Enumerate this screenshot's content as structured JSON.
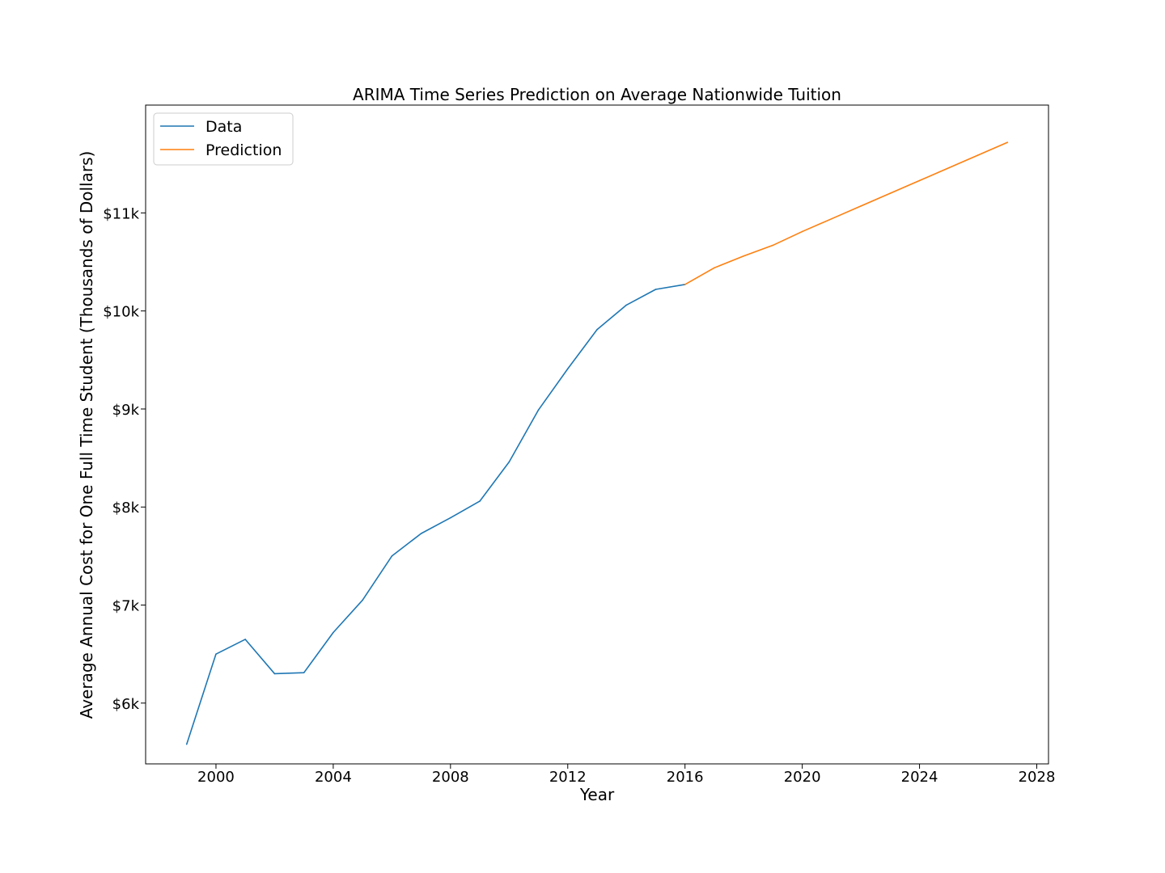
{
  "chart_data": {
    "type": "line",
    "title": "ARIMA Time Series Prediction on Average Nationwide Tuition",
    "xlabel": "Year",
    "ylabel": "Average Annual Cost for One Full Time Student (Thousands of Dollars)",
    "xlim": [
      1997.6,
      2028.4
    ],
    "ylim": [
      5.38,
      12.1
    ],
    "x_ticks": [
      2000,
      2004,
      2008,
      2012,
      2016,
      2020,
      2024,
      2028
    ],
    "x_tick_labels": [
      "2000",
      "2004",
      "2008",
      "2012",
      "2016",
      "2020",
      "2024",
      "2028"
    ],
    "y_ticks": [
      6,
      7,
      8,
      9,
      10,
      11
    ],
    "y_tick_labels": [
      "$6k",
      "$7k",
      "$8k",
      "$9k",
      "$10k",
      "$11k"
    ],
    "grid": false,
    "legend_position": "top-left",
    "series": [
      {
        "name": "Data",
        "color": "#1f77b4",
        "x": [
          1999,
          2000,
          2001,
          2002,
          2003,
          2004,
          2005,
          2006,
          2007,
          2008,
          2009,
          2010,
          2011,
          2012,
          2013,
          2014,
          2015,
          2016
        ],
        "values": [
          5.58,
          6.5,
          6.65,
          6.3,
          6.31,
          6.72,
          7.05,
          7.5,
          7.73,
          7.89,
          8.06,
          8.46,
          8.99,
          9.41,
          9.81,
          10.06,
          10.22,
          10.27
        ]
      },
      {
        "name": "Prediction",
        "color": "#ff7f0e",
        "x": [
          2016,
          2017,
          2018,
          2019,
          2020,
          2021,
          2022,
          2023,
          2024,
          2025,
          2026,
          2027
        ],
        "values": [
          10.27,
          10.44,
          10.56,
          10.67,
          10.81,
          10.94,
          11.07,
          11.2,
          11.33,
          11.46,
          11.59,
          11.72
        ]
      }
    ]
  }
}
